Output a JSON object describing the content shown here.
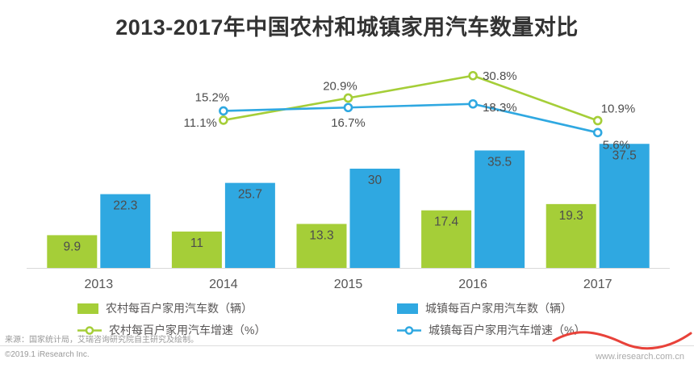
{
  "title": "2013-2017年中国农村和城镇家用汽车数量对比",
  "colors": {
    "rural_green": "#a5ce38",
    "urban_blue": "#2fa8e1",
    "wave_red": "#e8423a"
  },
  "chart_data": {
    "type": "bar+line",
    "title": "2013-2017年中国农村和城镇家用汽车数量对比",
    "categories": [
      "2013",
      "2014",
      "2015",
      "2016",
      "2017"
    ],
    "bar_series": [
      {
        "name": "农村每百户家用汽车数（辆）",
        "color": "#a5ce38",
        "values": [
          9.9,
          11,
          13.3,
          17.4,
          19.3
        ]
      },
      {
        "name": "城镇每百户家用汽车数（辆）",
        "color": "#2fa8e1",
        "values": [
          22.3,
          25.7,
          30,
          35.5,
          37.5
        ]
      }
    ],
    "line_series": [
      {
        "name": "农村每百户家用汽车增速（%）",
        "color": "#a5ce38",
        "x": [
          "2014",
          "2015",
          "2016",
          "2017"
        ],
        "values": [
          11.1,
          20.9,
          30.8,
          10.9
        ],
        "labels": [
          "11.1%",
          "20.9%",
          "30.8%",
          "10.9%"
        ]
      },
      {
        "name": "城镇每百户家用汽车增速（%）",
        "color": "#2fa8e1",
        "x": [
          "2014",
          "2015",
          "2016",
          "2017"
        ],
        "values": [
          15.2,
          16.7,
          18.3,
          5.6
        ],
        "labels": [
          "15.2%",
          "16.7%",
          "18.3%",
          "5.6%"
        ]
      }
    ],
    "legend_position": "bottom",
    "grid": false,
    "xlabel": "",
    "ylabel": ""
  },
  "footer": {
    "source": "来源：国家统计局，艾瑞咨询研究院自主研究及绘制。",
    "copyright": "©2019.1 iResearch Inc.",
    "website": "www.iresearch.com.cn"
  }
}
